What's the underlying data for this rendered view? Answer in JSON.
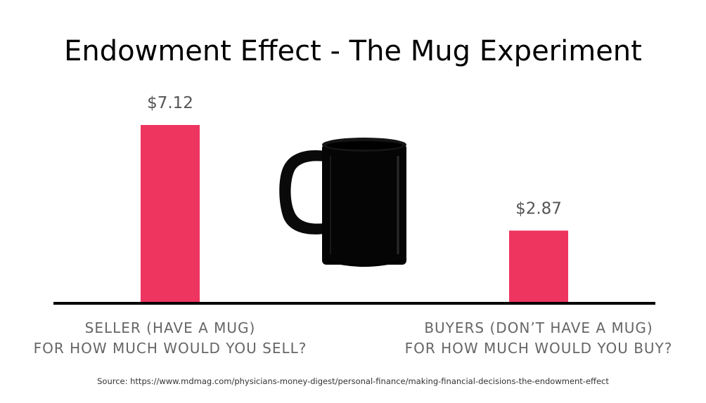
{
  "chart_data": {
    "type": "bar",
    "title": "Endowment Effect - The Mug Experiment",
    "categories": [
      [
        "SELLER (HAVE A MUG)",
        "FOR HOW MUCH WOULD YOU SELL?"
      ],
      [
        "BUYERS (DON’T HAVE A MUG)",
        "FOR HOW MUCH WOULD YOU BUY?"
      ]
    ],
    "values": [
      7.12,
      2.87
    ],
    "value_labels": [
      "$7.12",
      "$2.87"
    ],
    "ylim": [
      0,
      7.12
    ],
    "grid": false,
    "legend": "none",
    "bar_color": "#ee3560",
    "decoration": "mug-icon"
  },
  "source": "Source: https://www.mdmag.com/physicians-money-digest/personal-finance/making-financial-decisions-the-endowment-effect"
}
